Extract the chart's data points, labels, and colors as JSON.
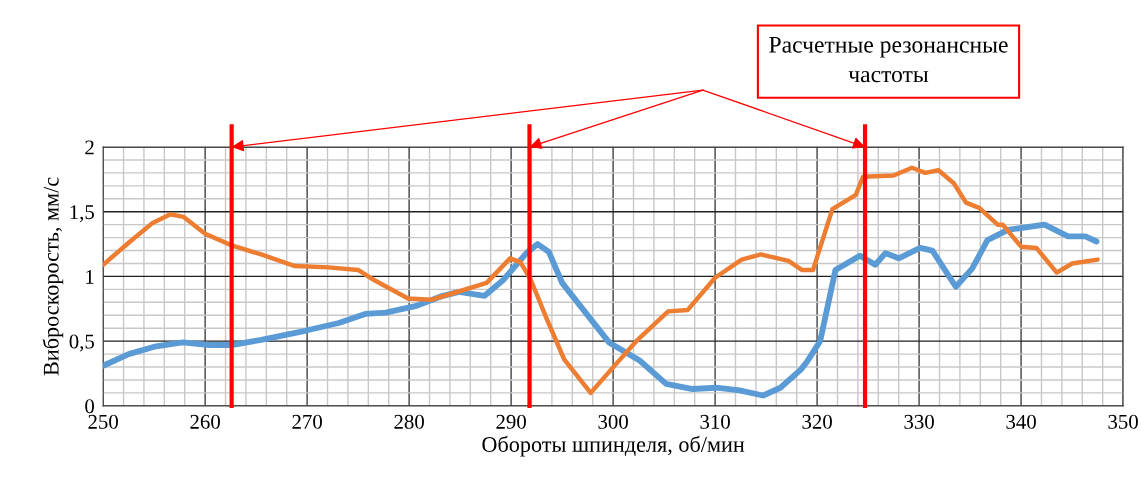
{
  "chart_data": {
    "type": "line",
    "xlabel": "Обороты шпинделя, об/мин",
    "ylabel": "Виброскорость, мм/с",
    "xlim": [
      250,
      350
    ],
    "xticks": [
      250,
      260,
      270,
      280,
      290,
      300,
      310,
      320,
      330,
      340,
      350
    ],
    "ylim": [
      0,
      2
    ],
    "yticks": [
      0,
      {
        "value": 0.5,
        "label": "0,5"
      },
      1,
      {
        "value": 1.5,
        "label": "1,5"
      },
      2
    ],
    "grid": true,
    "legend": false,
    "marker": "none",
    "line_style": "solid",
    "series": [
      {
        "color": "#5b9bd5",
        "x": [
          250,
          252.5,
          255.2,
          257.8,
          260.4,
          262.6,
          265.5,
          269.8,
          273.1,
          275.7,
          277.7,
          280.6,
          283.3,
          284.9,
          287.4,
          289.2,
          291.5,
          292.6,
          293.7,
          295,
          297.3,
          299.6,
          302.6,
          305.2,
          307.8,
          310.1,
          312.4,
          314.7,
          316.4,
          318.4,
          319,
          320.3,
          321.8,
          324.2,
          325.7,
          326.7,
          328,
          330.1,
          331.3,
          333.6,
          335.2,
          336.7,
          338.7,
          342.3,
          344.6,
          346.3,
          347.4
        ],
        "values": [
          0.31,
          0.4,
          0.46,
          0.49,
          0.47,
          0.47,
          0.51,
          0.58,
          0.64,
          0.71,
          0.72,
          0.77,
          0.85,
          0.88,
          0.85,
          0.97,
          1.18,
          1.25,
          1.19,
          0.95,
          0.72,
          0.49,
          0.35,
          0.17,
          0.13,
          0.14,
          0.12,
          0.08,
          0.14,
          0.28,
          0.34,
          0.5,
          1.05,
          1.16,
          1.09,
          1.18,
          1.14,
          1.22,
          1.2,
          0.92,
          1.06,
          1.28,
          1.36,
          1.4,
          1.31,
          1.31,
          1.27
        ]
      },
      {
        "color": "#ed7d31",
        "x": [
          250,
          252.5,
          254.8,
          256.6,
          257.9,
          260,
          262.6,
          265.5,
          268.8,
          272.1,
          275,
          276.6,
          279.9,
          282.2,
          284.3,
          287.6,
          289.9,
          290.9,
          291.9,
          293.5,
          295.2,
          297.8,
          299.8,
          302.4,
          305.4,
          307.3,
          310,
          312.6,
          314.5,
          317.2,
          318.5,
          319.6,
          321.5,
          323.8,
          324.5,
          327.5,
          329.3,
          330.6,
          331.9,
          333.4,
          334.6,
          335.9,
          337.7,
          338.2,
          340,
          341.5,
          343.5,
          345,
          347.5
        ],
        "values": [
          1.09,
          1.26,
          1.41,
          1.48,
          1.46,
          1.33,
          1.24,
          1.17,
          1.08,
          1.07,
          1.05,
          0.97,
          0.83,
          0.82,
          0.87,
          0.95,
          1.14,
          1.11,
          0.98,
          0.67,
          0.36,
          0.1,
          0.28,
          0.51,
          0.73,
          0.74,
          0.99,
          1.13,
          1.17,
          1.12,
          1.05,
          1.05,
          1.52,
          1.63,
          1.77,
          1.78,
          1.84,
          1.8,
          1.82,
          1.72,
          1.57,
          1.53,
          1.4,
          1.4,
          1.23,
          1.22,
          1.03,
          1.1,
          1.13
        ]
      }
    ],
    "ref_lines": [
      {
        "axis": "x",
        "value": 262.6,
        "color": "#ff0000"
      },
      {
        "axis": "x",
        "value": 291.8,
        "color": "#ff0000"
      },
      {
        "axis": "x",
        "value": 324.7,
        "color": "#ff0000"
      }
    ],
    "annotations": [
      "Расчетные резонансные\nчастоты"
    ]
  }
}
